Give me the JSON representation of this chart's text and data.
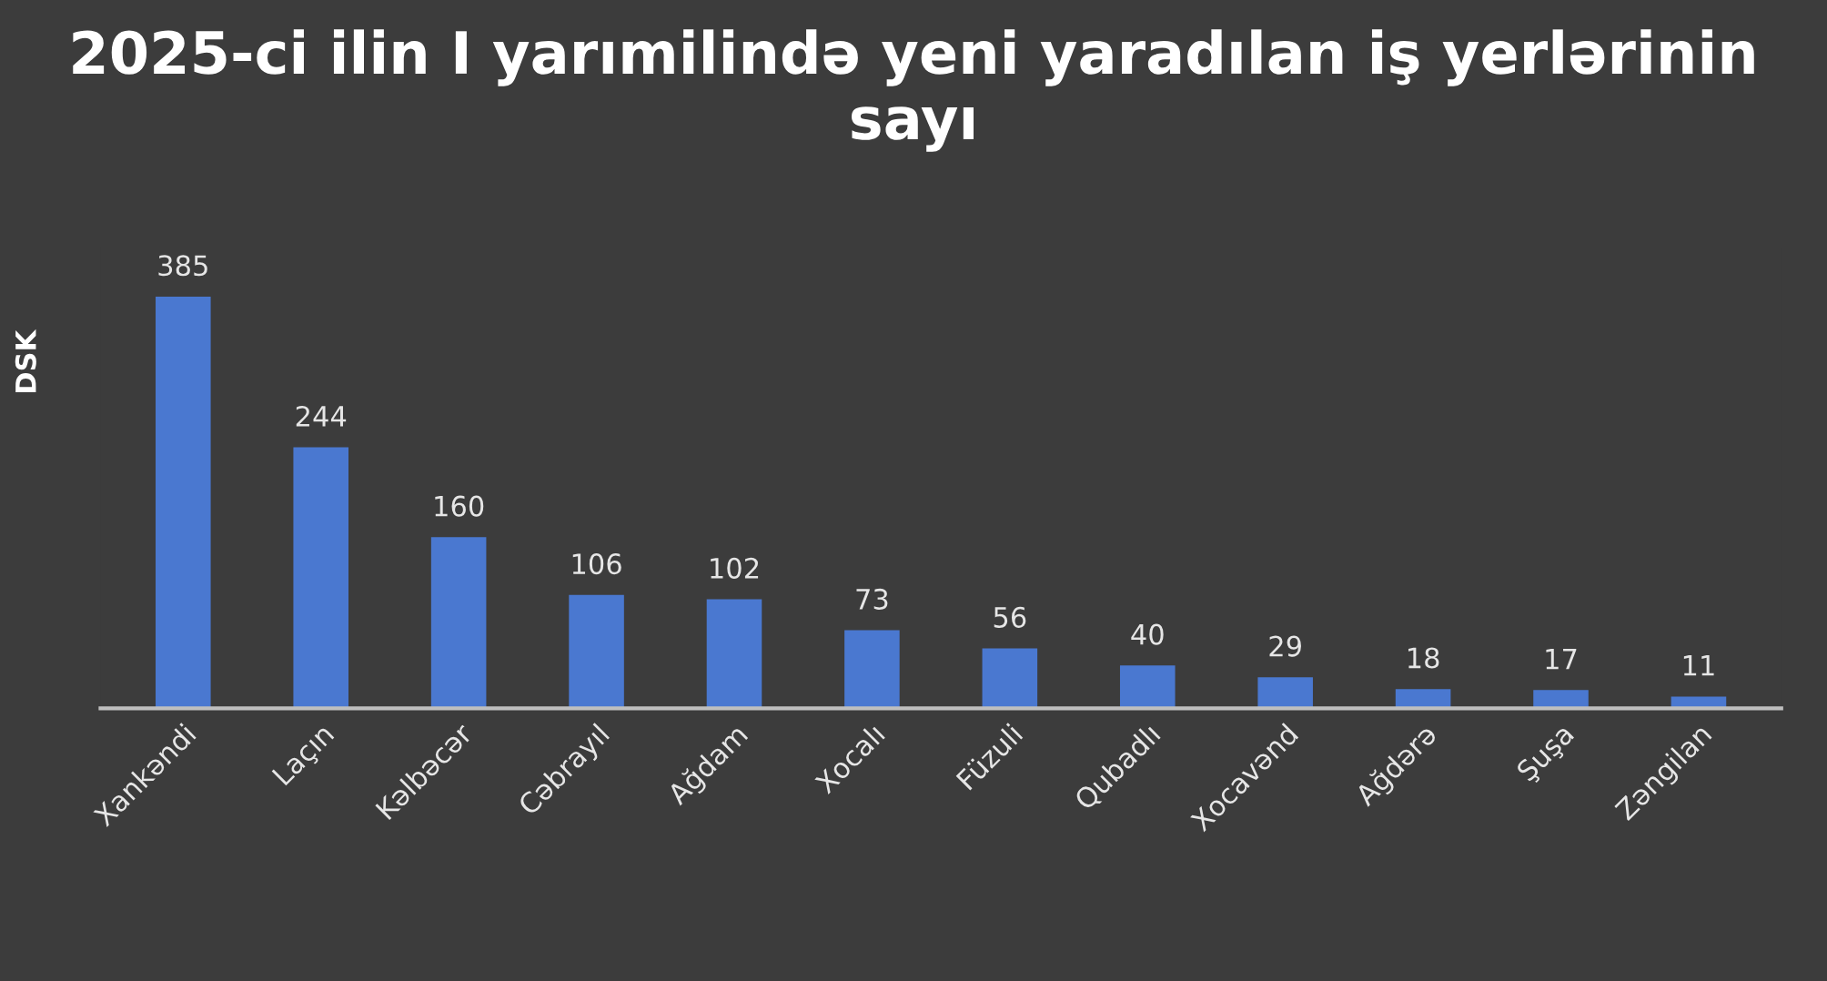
{
  "chart_data": {
    "type": "bar",
    "title": "2025-ci ilin I yarımilində yeni yaradılan iş yerlərinin sayı",
    "ylabel": "DSK",
    "categories": [
      "Xankəndi",
      "Laçın",
      "Kəlbəcər",
      "Cəbrayıl",
      "Ağdam",
      "Xocalı",
      "Füzuli",
      "Qubadlı",
      "Xocavənd",
      "Ağdərə",
      "Şuşa",
      "Zəngilan"
    ],
    "values": [
      385,
      244,
      160,
      106,
      102,
      73,
      56,
      40,
      29,
      18,
      17,
      11
    ],
    "color": "#4a78d0",
    "data_labels": true,
    "grid": false
  }
}
